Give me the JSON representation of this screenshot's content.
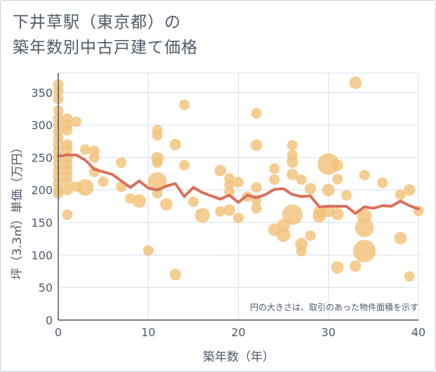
{
  "title_lines": [
    "下井草駅（東京都）の",
    "築年数別中古戸建て価格"
  ],
  "chart_data": {
    "type": "scatter",
    "title": "下井草駅（東京都）の築年数別中古戸建て価格",
    "xlabel": "築年数（年）",
    "ylabel": "坪（3.3㎡）単価（万円）",
    "xlim": [
      0,
      40
    ],
    "ylim": [
      0,
      380
    ],
    "xticks": [
      0,
      10,
      20,
      30,
      40
    ],
    "yticks": [
      0,
      50,
      100,
      150,
      200,
      250,
      300,
      350
    ],
    "grid": true,
    "note": "円の大きさは、取引のあった物件面積を示す",
    "colors": {
      "bubble": "#f3c27a",
      "line": "#d9715a",
      "grid": "#d5e0ea",
      "axis": "#4b5968"
    },
    "bubbles": [
      {
        "x": 0,
        "y": 362,
        "s": 1
      },
      {
        "x": 0,
        "y": 352,
        "s": 1
      },
      {
        "x": 0,
        "y": 340,
        "s": 1
      },
      {
        "x": 0,
        "y": 322,
        "s": 1
      },
      {
        "x": 0,
        "y": 310,
        "s": 1
      },
      {
        "x": 0,
        "y": 300,
        "s": 1
      },
      {
        "x": 0,
        "y": 290,
        "s": 1
      },
      {
        "x": 0,
        "y": 280,
        "s": 1
      },
      {
        "x": 0,
        "y": 270,
        "s": 1
      },
      {
        "x": 0,
        "y": 260,
        "s": 1
      },
      {
        "x": 0,
        "y": 250,
        "s": 1
      },
      {
        "x": 0,
        "y": 240,
        "s": 1
      },
      {
        "x": 0,
        "y": 230,
        "s": 1
      },
      {
        "x": 0,
        "y": 220,
        "s": 1
      },
      {
        "x": 0,
        "y": 210,
        "s": 1
      },
      {
        "x": 0,
        "y": 200,
        "s": 1
      },
      {
        "x": 0,
        "y": 195,
        "s": 1
      },
      {
        "x": 1,
        "y": 310,
        "s": 1
      },
      {
        "x": 1,
        "y": 300,
        "s": 1
      },
      {
        "x": 1,
        "y": 292,
        "s": 1
      },
      {
        "x": 1,
        "y": 270,
        "s": 1
      },
      {
        "x": 1,
        "y": 262,
        "s": 1
      },
      {
        "x": 1,
        "y": 250,
        "s": 1
      },
      {
        "x": 1,
        "y": 240,
        "s": 1
      },
      {
        "x": 1,
        "y": 232,
        "s": 1
      },
      {
        "x": 1,
        "y": 222,
        "s": 1
      },
      {
        "x": 1,
        "y": 212,
        "s": 1
      },
      {
        "x": 1,
        "y": 200,
        "s": 1
      },
      {
        "x": 1,
        "y": 162,
        "s": 1
      },
      {
        "x": 2,
        "y": 305,
        "s": 1
      },
      {
        "x": 2,
        "y": 205,
        "s": 1
      },
      {
        "x": 3,
        "y": 262,
        "s": 1
      },
      {
        "x": 3,
        "y": 204,
        "s": 2.5
      },
      {
        "x": 4,
        "y": 260,
        "s": 1
      },
      {
        "x": 4,
        "y": 250,
        "s": 1
      },
      {
        "x": 4,
        "y": 228,
        "s": 1
      },
      {
        "x": 5,
        "y": 213,
        "s": 1
      },
      {
        "x": 7,
        "y": 242,
        "s": 1
      },
      {
        "x": 7,
        "y": 205,
        "s": 1
      },
      {
        "x": 8,
        "y": 187,
        "s": 1
      },
      {
        "x": 9,
        "y": 183,
        "s": 1.6
      },
      {
        "x": 10,
        "y": 107,
        "s": 1
      },
      {
        "x": 11,
        "y": 292,
        "s": 1
      },
      {
        "x": 11,
        "y": 284,
        "s": 1
      },
      {
        "x": 11,
        "y": 249,
        "s": 1.4
      },
      {
        "x": 11,
        "y": 242,
        "s": 1
      },
      {
        "x": 11,
        "y": 213,
        "s": 3.2
      },
      {
        "x": 11,
        "y": 195,
        "s": 1
      },
      {
        "x": 12,
        "y": 178,
        "s": 1.4
      },
      {
        "x": 13,
        "y": 270,
        "s": 1.2
      },
      {
        "x": 13,
        "y": 70,
        "s": 1.2
      },
      {
        "x": 14,
        "y": 331,
        "s": 1
      },
      {
        "x": 14,
        "y": 238,
        "s": 1
      },
      {
        "x": 15,
        "y": 182,
        "s": 1
      },
      {
        "x": 16,
        "y": 161,
        "s": 2
      },
      {
        "x": 18,
        "y": 230,
        "s": 1.2
      },
      {
        "x": 18,
        "y": 167,
        "s": 1
      },
      {
        "x": 19,
        "y": 218,
        "s": 1
      },
      {
        "x": 19,
        "y": 208,
        "s": 1
      },
      {
        "x": 19,
        "y": 197,
        "s": 1
      },
      {
        "x": 19,
        "y": 169,
        "s": 1.2
      },
      {
        "x": 20,
        "y": 212,
        "s": 1
      },
      {
        "x": 20,
        "y": 157,
        "s": 1
      },
      {
        "x": 21,
        "y": 190,
        "s": 1
      },
      {
        "x": 22,
        "y": 318,
        "s": 1
      },
      {
        "x": 22,
        "y": 269,
        "s": 1.2
      },
      {
        "x": 22,
        "y": 204,
        "s": 1
      },
      {
        "x": 22,
        "y": 185,
        "s": 1
      },
      {
        "x": 22,
        "y": 172,
        "s": 1
      },
      {
        "x": 24,
        "y": 233,
        "s": 1
      },
      {
        "x": 24,
        "y": 216,
        "s": 1
      },
      {
        "x": 24,
        "y": 139,
        "s": 1.4
      },
      {
        "x": 25,
        "y": 145,
        "s": 1.6
      },
      {
        "x": 25,
        "y": 131,
        "s": 1.8
      },
      {
        "x": 26,
        "y": 269,
        "s": 1
      },
      {
        "x": 26,
        "y": 254,
        "s": 1
      },
      {
        "x": 26,
        "y": 243,
        "s": 1.2
      },
      {
        "x": 26,
        "y": 224,
        "s": 1.2
      },
      {
        "x": 26,
        "y": 162,
        "s": 3.8
      },
      {
        "x": 27,
        "y": 216,
        "s": 1
      },
      {
        "x": 27,
        "y": 117,
        "s": 1.4
      },
      {
        "x": 27,
        "y": 106,
        "s": 1
      },
      {
        "x": 28,
        "y": 202,
        "s": 1.2
      },
      {
        "x": 28,
        "y": 130,
        "s": 1
      },
      {
        "x": 29,
        "y": 166,
        "s": 1.4
      },
      {
        "x": 29,
        "y": 160,
        "s": 1.6
      },
      {
        "x": 30,
        "y": 240,
        "s": 4.2
      },
      {
        "x": 30,
        "y": 200,
        "s": 1.4
      },
      {
        "x": 30,
        "y": 168,
        "s": 1.4
      },
      {
        "x": 31,
        "y": 238,
        "s": 1.2
      },
      {
        "x": 31,
        "y": 217,
        "s": 1
      },
      {
        "x": 31,
        "y": 163,
        "s": 1.4
      },
      {
        "x": 31,
        "y": 81,
        "s": 1.4
      },
      {
        "x": 32,
        "y": 192,
        "s": 1
      },
      {
        "x": 33,
        "y": 365,
        "s": 1.4
      },
      {
        "x": 33,
        "y": 83,
        "s": 1.2
      },
      {
        "x": 34,
        "y": 223,
        "s": 1
      },
      {
        "x": 34,
        "y": 160,
        "s": 2
      },
      {
        "x": 34,
        "y": 142,
        "s": 3.2
      },
      {
        "x": 34,
        "y": 106,
        "s": 4.6
      },
      {
        "x": 36,
        "y": 211,
        "s": 1
      },
      {
        "x": 38,
        "y": 193,
        "s": 1
      },
      {
        "x": 38,
        "y": 126,
        "s": 1.4
      },
      {
        "x": 39,
        "y": 200,
        "s": 1.2
      },
      {
        "x": 39,
        "y": 67,
        "s": 1
      },
      {
        "x": 40,
        "y": 168,
        "s": 1
      }
    ],
    "series": [
      {
        "type": "line",
        "x": [
          0,
          1,
          2,
          3,
          4,
          5,
          6,
          7,
          8,
          9,
          10,
          11,
          12,
          13,
          14,
          15,
          16,
          17,
          18,
          19,
          20,
          21,
          22,
          23,
          24,
          25,
          26,
          27,
          28,
          29,
          30,
          31,
          32,
          33,
          34,
          35,
          36,
          37,
          38,
          39,
          40
        ],
        "values": [
          252,
          254,
          254,
          246,
          232,
          228,
          224,
          214,
          204,
          214,
          203,
          200,
          206,
          210,
          190,
          204,
          196,
          191,
          186,
          192,
          181,
          192,
          188,
          193,
          201,
          202,
          193,
          190,
          191,
          174,
          175,
          175,
          175,
          164,
          174,
          172,
          176,
          175,
          183,
          176,
          171
        ]
      }
    ]
  }
}
